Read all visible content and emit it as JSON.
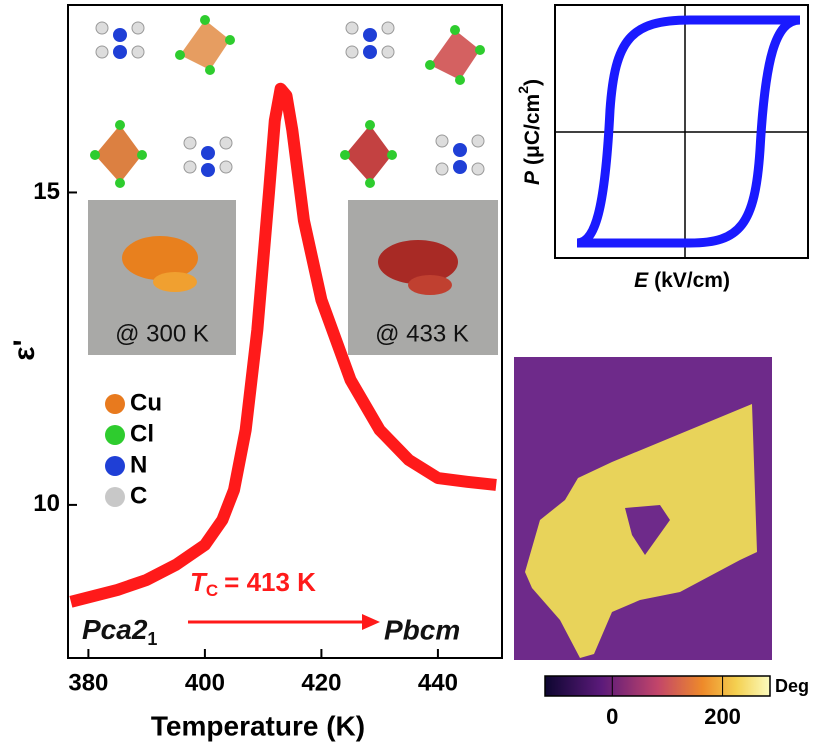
{
  "chart_data": [
    {
      "type": "line",
      "x_label": "Temperature (K)",
      "y_label": "ε'",
      "x": [
        377,
        385,
        390,
        395,
        400,
        403,
        405,
        407,
        409,
        411,
        412,
        413,
        414,
        415,
        417,
        420,
        425,
        430,
        435,
        440,
        445,
        450
      ],
      "values": [
        8.45,
        8.64,
        8.8,
        9.04,
        9.36,
        9.76,
        10.24,
        11.2,
        12.8,
        15.0,
        16.15,
        16.66,
        16.55,
        16.0,
        14.55,
        13.28,
        12.0,
        11.2,
        10.72,
        10.43,
        10.37,
        10.32
      ],
      "color": "#ff1a1a",
      "xlim": [
        376.5,
        451
      ],
      "xticks": [
        380,
        400,
        420,
        440
      ],
      "ylim": [
        7.55,
        18
      ],
      "yticks": [
        10,
        15
      ],
      "annotations": {
        "tc_symbol": "T",
        "tc_sub": "C",
        "tc_value": "= 413 K",
        "phase_low": "Pca2",
        "phase_low_sub": "1",
        "phase_high": "Pbcm",
        "photo_low": "@ 300 K",
        "photo_high": "@ 433 K"
      },
      "atoms": [
        {
          "name": "Cu",
          "color": "#e87a1e"
        },
        {
          "name": "Cl",
          "color": "#2ecc2e"
        },
        {
          "name": "N",
          "color": "#1f3fd6"
        },
        {
          "name": "C",
          "color": "#c8c8c8"
        }
      ]
    },
    {
      "type": "loop",
      "x_label_symbol": "E",
      "x_label_unit": "(kV/cm)",
      "y_label_symbol": "P",
      "y_label_unit": "(μC/cm",
      "y_label_sup": "2",
      "y_label_close": ")",
      "color": "#1a1aff"
    },
    {
      "type": "colorbar",
      "label": "Deg",
      "lim": [
        -122,
        286
      ],
      "ticks": [
        0,
        200
      ]
    }
  ]
}
